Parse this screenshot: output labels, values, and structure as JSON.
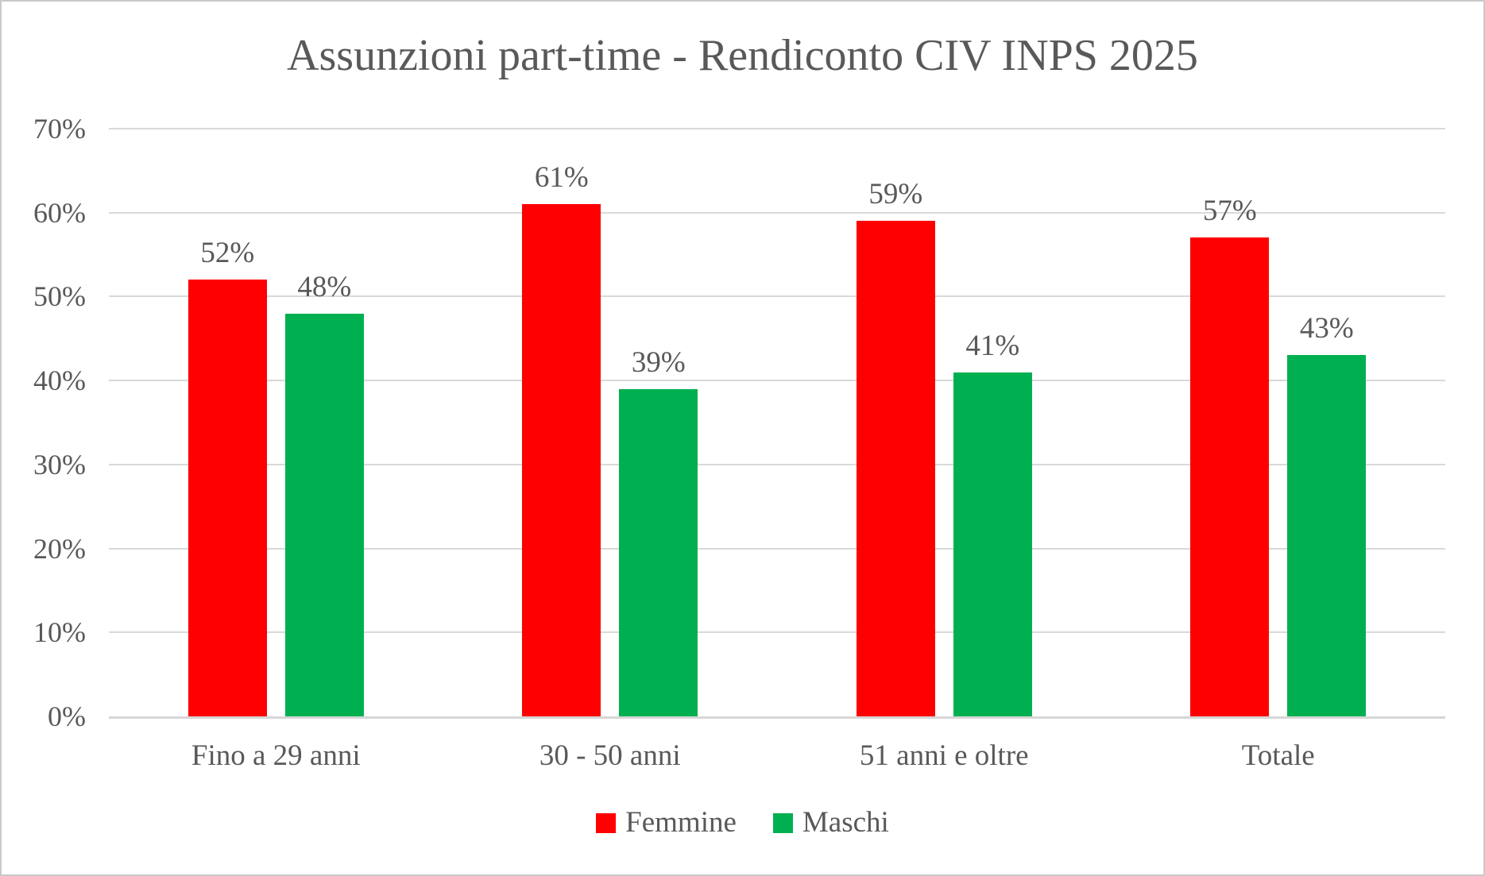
{
  "chart_data": {
    "type": "bar",
    "title": "Assunzioni part-time - Rendiconto CIV INPS 2025",
    "categories": [
      "Fino a 29 anni",
      "30 - 50 anni",
      "51 anni e oltre",
      "Totale"
    ],
    "series": [
      {
        "name": "Femmine",
        "color": "#FF0000",
        "values": [
          52,
          61,
          59,
          57
        ],
        "data_labels": [
          "52%",
          "61%",
          "59%",
          "57%"
        ]
      },
      {
        "name": "Maschi",
        "color": "#00B050",
        "values": [
          48,
          39,
          41,
          43
        ],
        "data_labels": [
          "48%",
          "39%",
          "41%",
          "43%"
        ]
      }
    ],
    "xlabel": "",
    "ylabel": "",
    "ylim": [
      0,
      70
    ],
    "y_ticks": [
      "0%",
      "10%",
      "20%",
      "30%",
      "40%",
      "50%",
      "60%",
      "70%"
    ],
    "grid": true,
    "legend": {
      "position": "bottom",
      "entries": [
        "Femmine",
        "Maschi"
      ]
    }
  },
  "colors": {
    "femmine": "#FF0000",
    "maschi": "#00B050",
    "text": "#595959",
    "gridline": "#D9D9D9",
    "axis_line": "#D6D6D6",
    "frame_border": "#C9C9C9",
    "background": "#FFFFFF"
  }
}
